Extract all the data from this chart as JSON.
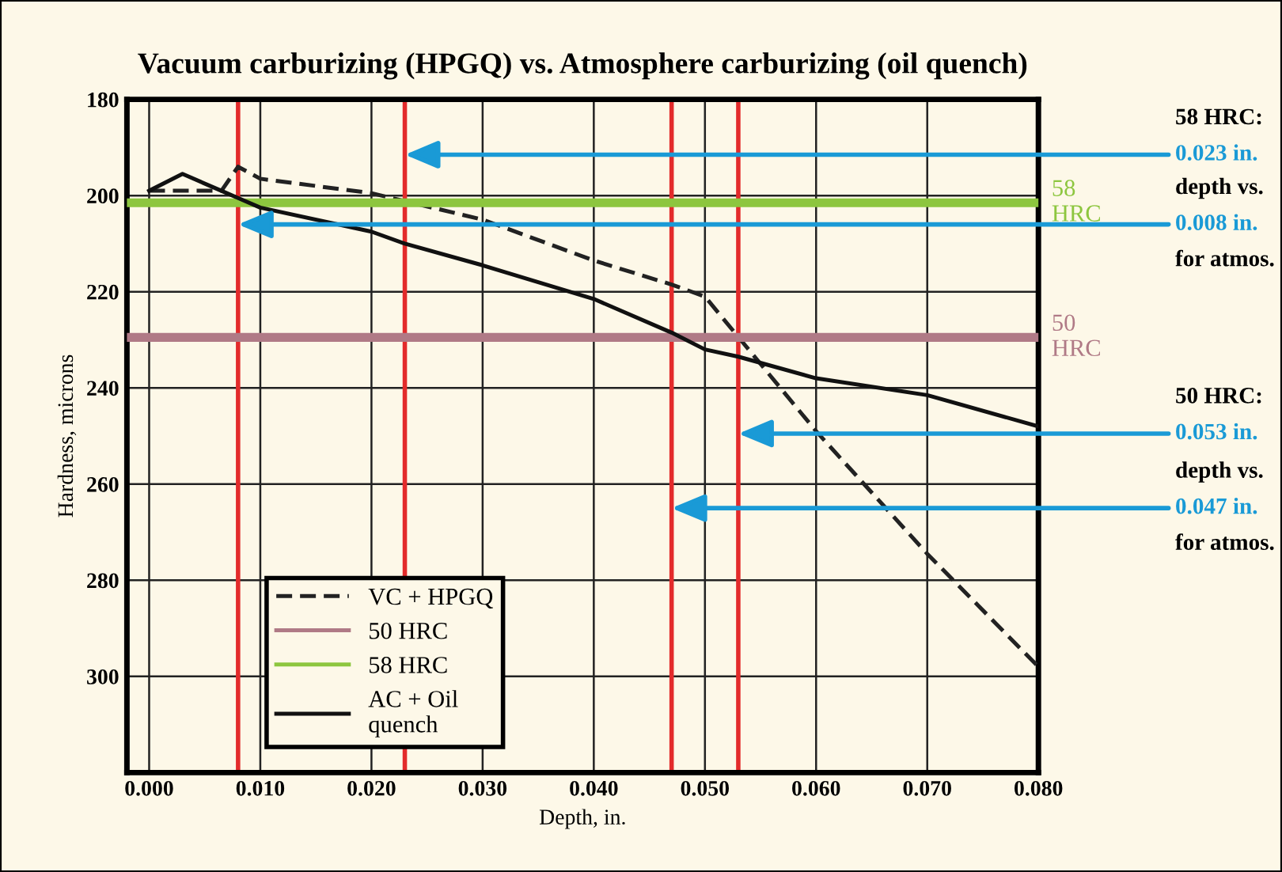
{
  "chart_data": {
    "type": "line",
    "title": "Vacuum carburizing (HPGQ) vs. Atmosphere carburizing (oil quench)",
    "xlabel": "Depth, in.",
    "ylabel": "Hardness, microns",
    "series": [
      {
        "name": "VC + HPGQ",
        "color": "#222222",
        "line_style": "dashed",
        "x": [
          0.0,
          0.0065,
          0.008,
          0.01,
          0.02,
          0.03,
          0.04,
          0.047,
          0.05,
          0.06,
          0.07,
          0.08
        ],
        "values": [
          199,
          199,
          194,
          196.5,
          199.5,
          205,
          213.5,
          218.5,
          221,
          249,
          274.5,
          298
        ]
      },
      {
        "name": "50 HRC",
        "color": "#b07a86",
        "line_style": "solid",
        "x": [
          -0.002,
          0.08
        ],
        "values": [
          229.5,
          229.5
        ]
      },
      {
        "name": "58 HRC",
        "color": "#8dc63f",
        "line_style": "solid",
        "x": [
          -0.002,
          0.08
        ],
        "values": [
          201.5,
          201.5
        ]
      },
      {
        "name": "AC + Oil\nquench",
        "color": "#111111",
        "line_style": "solid",
        "x": [
          0.0,
          0.003,
          0.0065,
          0.008,
          0.01,
          0.02,
          0.023,
          0.03,
          0.04,
          0.047,
          0.05,
          0.053,
          0.06,
          0.07,
          0.08
        ],
        "values": [
          199,
          195.5,
          199,
          200.5,
          202.5,
          207.5,
          210,
          214.5,
          221.5,
          228.5,
          232,
          233.5,
          238,
          241.5,
          248
        ]
      }
    ],
    "xlim": [
      -0.002,
      0.08
    ],
    "ylim": [
      320,
      180
    ],
    "xticks": [
      {
        "value": 0.0,
        "label": "0.000"
      },
      {
        "value": 0.01,
        "label": "0.010"
      },
      {
        "value": 0.02,
        "label": "0.020"
      },
      {
        "value": 0.03,
        "label": "0.030"
      },
      {
        "value": 0.04,
        "label": "0.040"
      },
      {
        "value": 0.05,
        "label": "0.050"
      },
      {
        "value": 0.06,
        "label": "0.060"
      },
      {
        "value": 0.07,
        "label": "0.070"
      },
      {
        "value": 0.08,
        "label": "0.080"
      }
    ],
    "yticks": [
      180,
      200,
      220,
      240,
      260,
      280,
      300
    ],
    "ref_lines": [
      {
        "axis": "x",
        "value": 0.008,
        "color": "#e32b2b"
      },
      {
        "axis": "x",
        "value": 0.023,
        "color": "#e32b2b"
      },
      {
        "axis": "x",
        "value": 0.047,
        "color": "#e32b2b"
      },
      {
        "axis": "x",
        "value": 0.053,
        "color": "#e32b2b"
      }
    ],
    "annotations": [
      {
        "text": "58\nHRC",
        "x": 0.08,
        "y": 201.5
      },
      {
        "text": "50\nHRC",
        "x": 0.08,
        "y": 229.5
      },
      "58 HRC:",
      {
        "text": "0.023 in.",
        "x": 0.023,
        "y": 191.5
      },
      "depth vs.",
      {
        "text": "0.008 in.",
        "x": 0.008,
        "y": 206
      },
      "for atmos.",
      "50 HRC:",
      {
        "text": "0.053 in.",
        "x": 0.053,
        "y": 249.5
      },
      "depth vs.",
      {
        "text": "0.047 in.",
        "x": 0.047,
        "y": 265
      },
      "for atmos."
    ],
    "grid": true,
    "legend": "bottom left",
    "marker": "none"
  }
}
